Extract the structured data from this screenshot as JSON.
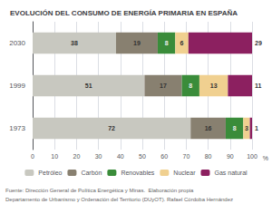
{
  "chart_data": {
    "type": "bar",
    "orientation": "horizontal",
    "stacked": true,
    "title": "EVOLUCIÓN DEL CONSUMO DE ENERGÍA PRIMARIA EN ESPAÑA",
    "xlabel": "%",
    "categories": [
      "1973",
      "1999",
      "2030"
    ],
    "series": [
      {
        "name": "Petróleo",
        "color": "#c8c8c0",
        "values": [
          72,
          51,
          38
        ]
      },
      {
        "name": "Carbón",
        "color": "#888070",
        "values": [
          16,
          17,
          19
        ]
      },
      {
        "name": "Renovables",
        "color": "#3a8c3a",
        "values": [
          8,
          8,
          8
        ]
      },
      {
        "name": "Nuclear",
        "color": "#f0d090",
        "values": [
          3,
          13,
          6
        ]
      },
      {
        "name": "Gas natural",
        "color": "#8c2060",
        "values": [
          1,
          11,
          29
        ]
      }
    ],
    "xlim": [
      0,
      100
    ],
    "xticks": [
      0,
      10,
      20,
      30,
      40,
      50,
      60,
      70,
      80,
      90,
      100
    ],
    "grid": true,
    "legend": "bottom",
    "data_labels": true,
    "annotations": [
      "Fuente: Dirección General de Política Energética y Minas.  Elaboración propia",
      "Departamento de Urbanismo y Ordenación del Territorio (DUyOT). Rafael Córdoba Hernández"
    ]
  }
}
